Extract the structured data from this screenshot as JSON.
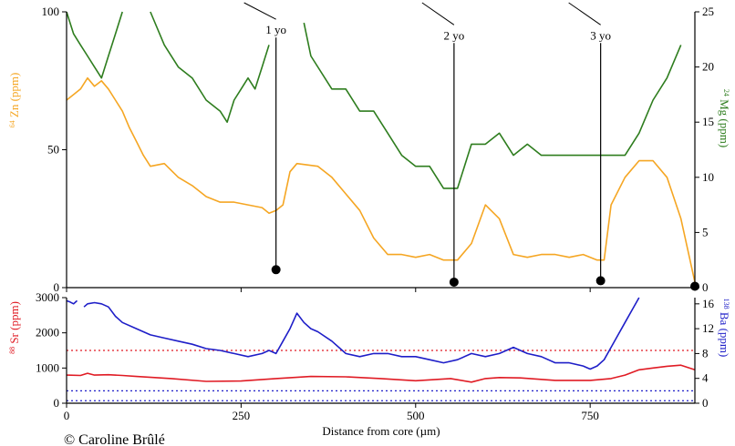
{
  "colors": {
    "zn": "#f5a623",
    "mg": "#2e7d1e",
    "sr": "#e01b24",
    "ba": "#1e1ec8",
    "axis": "#000000"
  },
  "copyright": "© Caroline Brûlé",
  "chart_data": [
    {
      "type": "line",
      "xlabel": "",
      "xlim": [
        0,
        900
      ],
      "y_left": {
        "label_sup": "64",
        "label_main": "Zn (ppm)",
        "ylim": [
          0,
          100
        ],
        "ticks": [
          "0",
          "50",
          "100"
        ]
      },
      "y_right": {
        "label_sup": "24",
        "label_main": "Mg (ppm)",
        "ylim": [
          0,
          25
        ],
        "ticks": [
          "0",
          "5",
          "10",
          "15",
          "20",
          "25"
        ]
      },
      "series": [
        {
          "key": "zn",
          "axis": "left",
          "x": [
            0,
            10,
            20,
            30,
            40,
            50,
            60,
            70,
            80,
            90,
            100,
            110,
            120,
            140,
            160,
            180,
            200,
            220,
            240,
            260,
            280,
            290,
            300,
            310,
            320,
            330,
            360,
            380,
            400,
            420,
            440,
            460,
            480,
            500,
            520,
            540,
            560,
            580,
            600,
            620,
            640,
            660,
            680,
            700,
            720,
            740,
            760,
            770,
            780,
            800,
            820,
            840,
            860,
            880,
            900
          ],
          "y": [
            68,
            70,
            72,
            76,
            73,
            75,
            72,
            68,
            64,
            58,
            53,
            48,
            44,
            45,
            40,
            37,
            33,
            31,
            31,
            30,
            29,
            27,
            28,
            30,
            42,
            45,
            44,
            40,
            34,
            28,
            18,
            12,
            12,
            11,
            12,
            10,
            10,
            16,
            30,
            25,
            12,
            11,
            12,
            12,
            11,
            12,
            10,
            10,
            30,
            40,
            46,
            46,
            40,
            25,
            2
          ]
        },
        {
          "key": "mg",
          "axis": "right",
          "x": [
            0,
            10,
            20,
            30,
            40,
            50,
            60,
            70,
            80,
            90,
            100,
            120,
            140,
            160,
            180,
            200,
            220,
            230,
            240,
            250,
            260,
            270,
            280,
            290,
            310,
            320,
            330,
            340,
            350,
            380,
            400,
            420,
            440,
            460,
            480,
            500,
            520,
            540,
            560,
            580,
            600,
            620,
            640,
            660,
            680,
            700,
            720,
            740,
            760,
            780,
            800,
            820,
            840,
            860,
            880,
            900
          ],
          "y": [
            25,
            23,
            22,
            21,
            20,
            19,
            21,
            23,
            25,
            null,
            null,
            25,
            22,
            20,
            19,
            17,
            16,
            15,
            17,
            18,
            19,
            18,
            20,
            22,
            null,
            null,
            null,
            24,
            21,
            18,
            18,
            16,
            16,
            14,
            12,
            11,
            11,
            9,
            9,
            13,
            13,
            14,
            12,
            13,
            12,
            12,
            12,
            12,
            12,
            12,
            12,
            14,
            17,
            19,
            22,
            null
          ]
        }
      ],
      "annotations": [
        {
          "label": "1 yo",
          "x": 300,
          "value": 6.5,
          "label_at": 92
        },
        {
          "label": "2 yo",
          "x": 555,
          "value": 2,
          "label_at": 90
        },
        {
          "label": "3 yo",
          "x": 765,
          "value": 2.5,
          "label_at": 90
        },
        {
          "label": "",
          "x": 900,
          "value": 0.5,
          "label_at": 95
        }
      ]
    },
    {
      "type": "line",
      "xlabel": "Distance from core (µm)",
      "xlim": [
        0,
        900
      ],
      "x_ticks": [
        "0",
        "250",
        "500",
        "750"
      ],
      "y_left": {
        "label_sup": "88",
        "label_main": "Sr (ppm)",
        "ylim": [
          0,
          3000
        ],
        "ticks": [
          "0",
          "1000",
          "2000",
          "3000"
        ]
      },
      "y_right": {
        "label_sup": "138",
        "label_main": "Ba (ppm)",
        "ylim": [
          0,
          17
        ],
        "ticks": [
          "0",
          "4",
          "8",
          "12",
          "16"
        ]
      },
      "series": [
        {
          "key": "ba",
          "axis": "right",
          "x": [
            0,
            5,
            10,
            15,
            20,
            25,
            30,
            40,
            50,
            60,
            70,
            80,
            100,
            120,
            140,
            160,
            180,
            200,
            220,
            240,
            260,
            280,
            290,
            300,
            310,
            320,
            330,
            340,
            350,
            360,
            380,
            400,
            420,
            440,
            460,
            480,
            500,
            520,
            540,
            560,
            580,
            600,
            620,
            640,
            660,
            680,
            700,
            720,
            740,
            750,
            760,
            770,
            780,
            790,
            800,
            810,
            820
          ],
          "y": [
            16.5,
            16.3,
            16,
            16.5,
            null,
            15.5,
            16,
            16.2,
            16,
            15.5,
            14,
            13,
            12,
            11,
            10.5,
            10,
            9.5,
            8.8,
            8.5,
            8,
            7.5,
            8,
            8.5,
            8,
            10,
            12,
            14.5,
            13,
            12,
            11.5,
            10,
            8,
            7.5,
            8,
            8,
            7.5,
            7.5,
            7,
            6.5,
            7,
            8,
            7.5,
            8,
            9,
            8,
            7.5,
            6.5,
            6.5,
            6,
            5.5,
            6,
            7,
            9,
            11,
            13,
            15,
            17
          ]
        },
        {
          "key": "sr",
          "axis": "left",
          "x": [
            0,
            20,
            30,
            40,
            60,
            80,
            100,
            150,
            200,
            250,
            300,
            350,
            400,
            450,
            500,
            550,
            580,
            600,
            620,
            650,
            700,
            750,
            780,
            800,
            820,
            840,
            860,
            880,
            900
          ],
          "y": [
            800,
            790,
            850,
            800,
            810,
            790,
            760,
            700,
            620,
            630,
            700,
            760,
            750,
            700,
            640,
            700,
            600,
            700,
            730,
            720,
            650,
            650,
            700,
            800,
            950,
            1000,
            1050,
            1080,
            950
          ]
        }
      ],
      "reference_lines": [
        {
          "key": "sr",
          "axis": "left",
          "value": 1500
        },
        {
          "key": "ba",
          "axis": "right",
          "value": 2
        },
        {
          "key": "ba",
          "axis": "right",
          "value": 0.4
        }
      ]
    }
  ]
}
